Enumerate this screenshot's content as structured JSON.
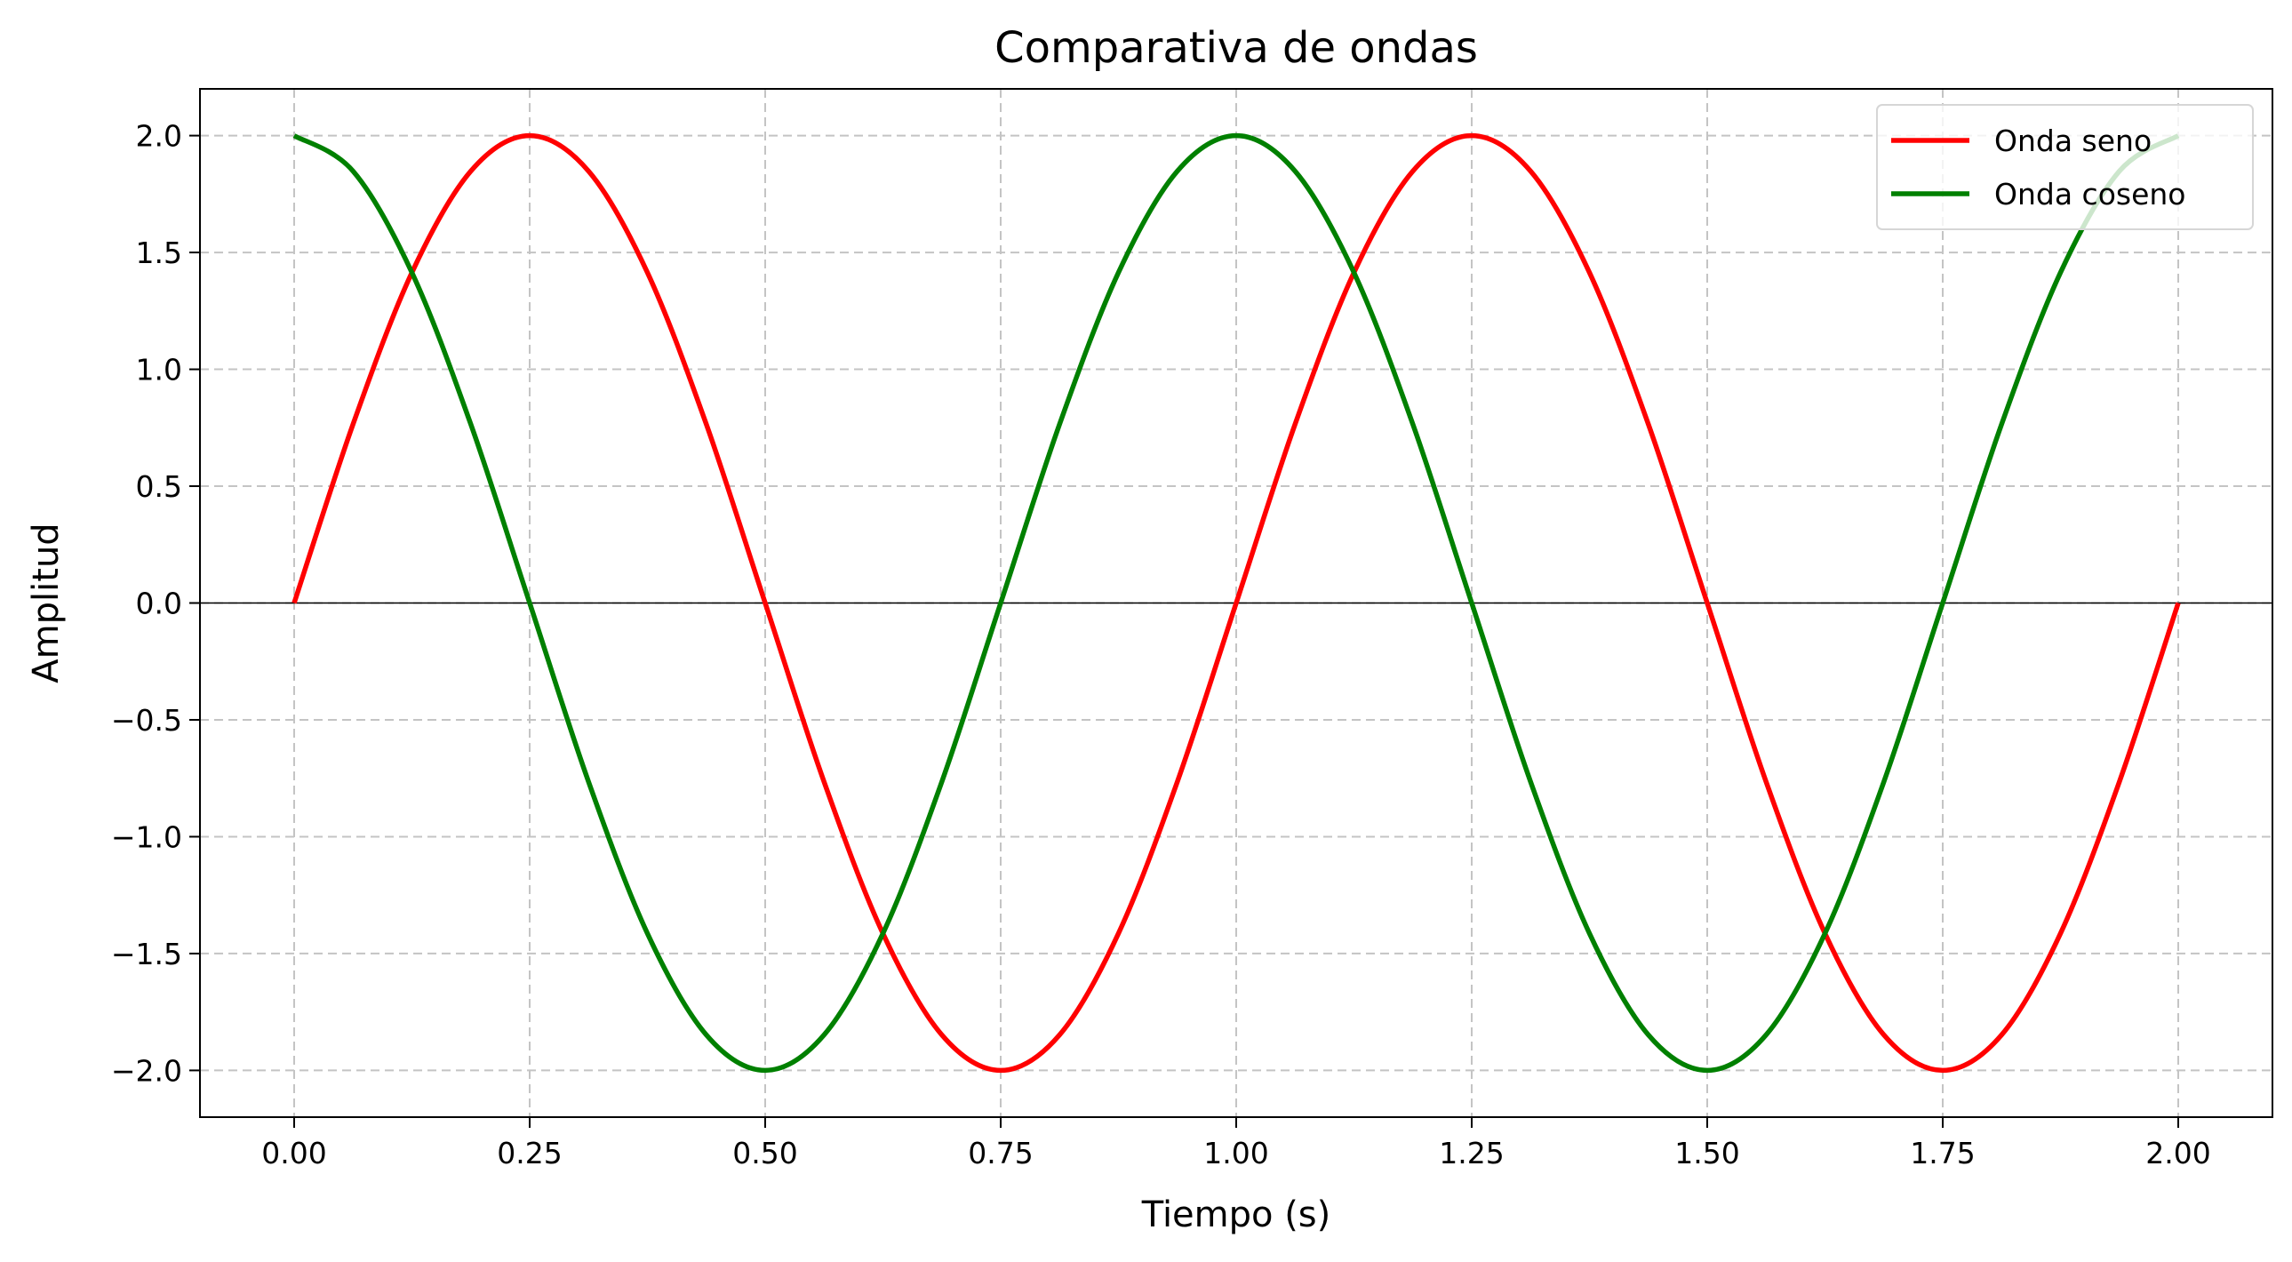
{
  "chart_data": {
    "type": "line",
    "title": "Comparativa de ondas",
    "xlabel": "Tiempo (s)",
    "ylabel": "Amplitud",
    "xlim": [
      -0.1,
      2.1
    ],
    "ylim": [
      -2.2,
      2.2
    ],
    "x_ticks": [
      0.0,
      0.25,
      0.5,
      0.75,
      1.0,
      1.25,
      1.5,
      1.75,
      2.0
    ],
    "x_tick_labels": [
      "0.00",
      "0.25",
      "0.50",
      "0.75",
      "1.00",
      "1.25",
      "1.50",
      "1.75",
      "2.00"
    ],
    "y_ticks": [
      2.0,
      1.5,
      1.0,
      0.5,
      0.0,
      -0.5,
      -1.0,
      -1.5,
      -2.0
    ],
    "y_tick_labels": [
      "2.0",
      "1.5",
      "1.0",
      "0.5",
      "0.0",
      "−0.5",
      "−1.0",
      "−1.5",
      "−2.0"
    ],
    "grid": true,
    "zero_line": true,
    "legend_position": "top-right",
    "x": [
      0.0,
      0.0625,
      0.125,
      0.1875,
      0.25,
      0.3125,
      0.375,
      0.4375,
      0.5,
      0.5625,
      0.625,
      0.6875,
      0.75,
      0.8125,
      0.875,
      0.9375,
      1.0,
      1.0625,
      1.125,
      1.1875,
      1.25,
      1.3125,
      1.375,
      1.4375,
      1.5,
      1.5625,
      1.625,
      1.6875,
      1.75,
      1.8125,
      1.875,
      1.9375,
      2.0
    ],
    "series": [
      {
        "name": "Onda seno",
        "color": "#ff0000",
        "values": [
          0.0,
          0.765,
          1.414,
          1.848,
          2.0,
          1.848,
          1.414,
          0.765,
          0.0,
          -0.765,
          -1.414,
          -1.848,
          -2.0,
          -1.848,
          -1.414,
          -0.765,
          0.0,
          0.765,
          1.414,
          1.848,
          2.0,
          1.848,
          1.414,
          0.765,
          0.0,
          -0.765,
          -1.414,
          -1.848,
          -2.0,
          -1.848,
          -1.414,
          -0.765,
          0.0
        ]
      },
      {
        "name": "Onda coseno",
        "color": "#008000",
        "values": [
          2.0,
          1.848,
          1.414,
          0.765,
          0.0,
          -0.765,
          -1.414,
          -1.848,
          -2.0,
          -1.848,
          -1.414,
          -0.765,
          0.0,
          0.765,
          1.414,
          1.848,
          2.0,
          1.848,
          1.414,
          0.765,
          0.0,
          -0.765,
          -1.414,
          -1.848,
          -2.0,
          -1.848,
          -1.414,
          -0.765,
          0.0,
          0.765,
          1.414,
          1.848,
          2.0
        ]
      }
    ]
  }
}
